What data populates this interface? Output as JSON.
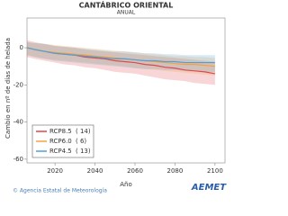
{
  "chart_data": {
    "type": "line",
    "title": "CANTÁBRICO ORIENTAL",
    "subtitle": "ANUAL",
    "x_label": "Año",
    "y_label": "Cambio en nº de días de helada",
    "x": [
      2006,
      2010,
      2015,
      2020,
      2025,
      2030,
      2035,
      2040,
      2045,
      2050,
      2055,
      2060,
      2065,
      2070,
      2075,
      2080,
      2085,
      2090,
      2095,
      2100
    ],
    "series": [
      {
        "name": "RCP8.5",
        "models": "( 14)",
        "color": "#e0464e",
        "values": [
          0,
          -1,
          -2,
          -3,
          -3.5,
          -4,
          -5,
          -5.5,
          -6,
          -7,
          -7.5,
          -8,
          -9,
          -9.5,
          -10.5,
          -11,
          -12,
          -12.5,
          -13,
          -14
        ],
        "band": {
          "lower": [
            -5,
            -6,
            -7,
            -8,
            -9,
            -9.5,
            -10.5,
            -11,
            -12,
            -13,
            -13.5,
            -14,
            -15,
            -16,
            -17,
            -17.5,
            -18,
            -19,
            -19.5,
            -20
          ],
          "upper": [
            4,
            3,
            2,
            1,
            0.5,
            0,
            -1,
            -1.5,
            -2,
            -2.5,
            -3,
            -3.5,
            -4,
            -4.5,
            -5,
            -5.5,
            -6,
            -6.5,
            -7,
            -7.5
          ]
        }
      },
      {
        "name": "RCP6.0",
        "models": "( 6)",
        "color": "#f2a43a",
        "values": [
          0,
          -1,
          -2,
          -2.5,
          -3,
          -3.5,
          -4,
          -4.5,
          -5,
          -5.5,
          -6,
          -6.5,
          -7,
          -7.5,
          -8,
          -8.5,
          -9,
          -9,
          -9.5,
          -10
        ],
        "band": {
          "lower": [
            -4,
            -5,
            -6,
            -6.5,
            -7,
            -7.5,
            -8,
            -8.5,
            -9,
            -9.5,
            -10,
            -11,
            -11.5,
            -12,
            -12.5,
            -13,
            -13.5,
            -14,
            -14.5,
            -15
          ],
          "upper": [
            3,
            2.5,
            2,
            1.5,
            1,
            0.5,
            0,
            -0.5,
            -1,
            -1.5,
            -2,
            -2.5,
            -3,
            -3.5,
            -4,
            -4.5,
            -4.5,
            -5,
            -5,
            -5.5
          ]
        }
      },
      {
        "name": "RCP4.5",
        "models": "( 13)",
        "color": "#4f9fd6",
        "values": [
          0,
          -1,
          -2,
          -3,
          -3.5,
          -4,
          -4.5,
          -5,
          -5.5,
          -6,
          -6,
          -6.5,
          -7,
          -7,
          -7.5,
          -7.5,
          -8,
          -8,
          -8,
          -8
        ],
        "band": {
          "lower": [
            -4,
            -5,
            -6,
            -7,
            -7.5,
            -8,
            -8.5,
            -9,
            -9.5,
            -10,
            -10.5,
            -11,
            -11.5,
            -11.5,
            -12,
            -12,
            -12.5,
            -12.5,
            -13,
            -13
          ],
          "upper": [
            3,
            2.5,
            2,
            1,
            0.5,
            0,
            -0.5,
            -1,
            -1.5,
            -2,
            -2,
            -2.5,
            -3,
            -3,
            -3.5,
            -3.5,
            -4,
            -4,
            -4,
            -4
          ]
        }
      }
    ],
    "xlim": [
      2006,
      2105
    ],
    "ylim": [
      -62,
      16
    ],
    "xticks": [
      2020,
      2040,
      2060,
      2080,
      2100
    ],
    "yticks": [
      0,
      -20,
      -40,
      -60
    ],
    "legend": "lower left",
    "credit": "© Agencia Estatal de Meteorología",
    "logo": "AEMET"
  }
}
